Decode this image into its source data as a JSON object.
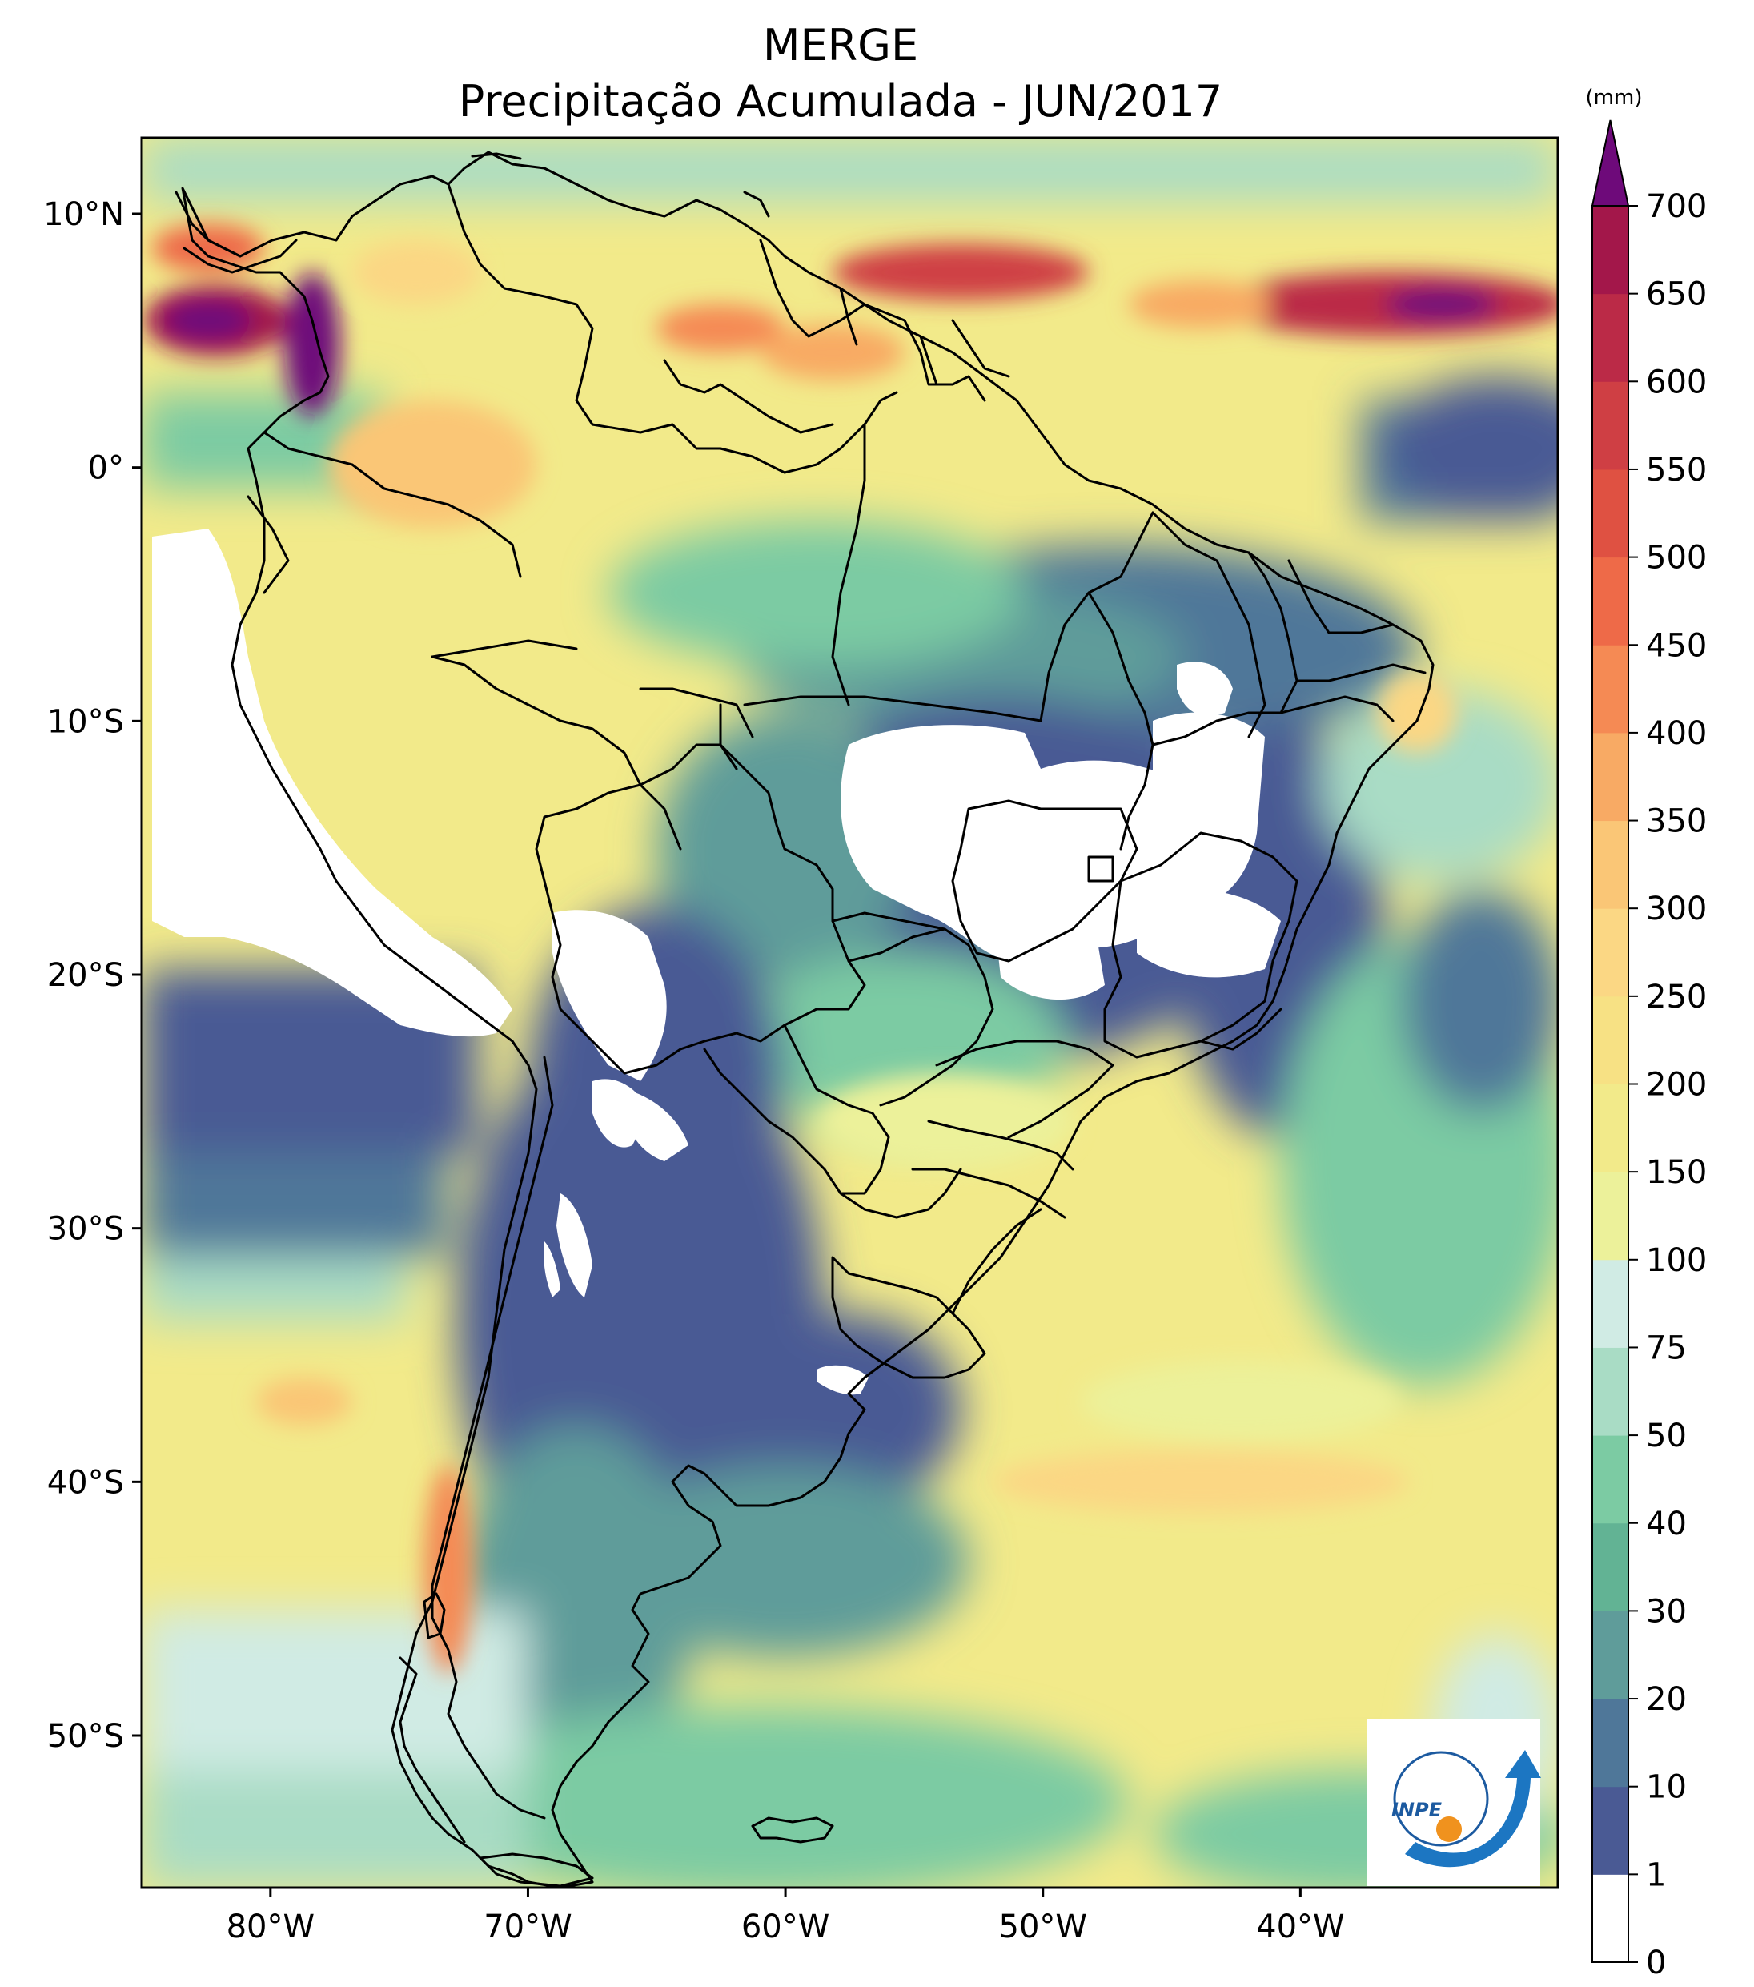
{
  "title": "MERGE",
  "subtitle": "Precipitação Acumulada - JUN/2017",
  "map": {
    "lon_range": [
      -85,
      -30
    ],
    "lat_range": [
      -56,
      13
    ],
    "lat_ticks": [
      {
        "value": 10,
        "label": "10°N"
      },
      {
        "value": 0,
        "label": "0°"
      },
      {
        "value": -10,
        "label": "10°S"
      },
      {
        "value": -20,
        "label": "20°S"
      },
      {
        "value": -30,
        "label": "30°S"
      },
      {
        "value": -40,
        "label": "40°S"
      },
      {
        "value": -50,
        "label": "50°S"
      }
    ],
    "lon_ticks": [
      {
        "value": -80,
        "label": "80°W"
      },
      {
        "value": -70,
        "label": "70°W"
      },
      {
        "value": -60,
        "label": "60°W"
      },
      {
        "value": -50,
        "label": "50°W"
      },
      {
        "value": -40,
        "label": "40°W"
      }
    ],
    "logo_text": "INPE"
  },
  "colorbar": {
    "unit": "(mm)",
    "extend": "max",
    "levels": [
      {
        "label": "0",
        "color": "#ffffff"
      },
      {
        "label": "1",
        "color": "#4a5a94"
      },
      {
        "label": "10",
        "color": "#4f7799"
      },
      {
        "label": "20",
        "color": "#5f9c9a"
      },
      {
        "label": "30",
        "color": "#62b394"
      },
      {
        "label": "40",
        "color": "#7ccba3"
      },
      {
        "label": "50",
        "color": "#a9dcc5"
      },
      {
        "label": "75",
        "color": "#d0ebe4"
      },
      {
        "label": "100",
        "color": "#ecf19a"
      },
      {
        "label": "150",
        "color": "#f2ea8a"
      },
      {
        "label": "200",
        "color": "#f7e184"
      },
      {
        "label": "250",
        "color": "#fbd784"
      },
      {
        "label": "300",
        "color": "#fac676"
      },
      {
        "label": "350",
        "color": "#f8aa64"
      },
      {
        "label": "400",
        "color": "#f58a54"
      },
      {
        "label": "450",
        "color": "#ee6a48"
      },
      {
        "label": "500",
        "color": "#df5142"
      },
      {
        "label": "550",
        "color": "#cf3f44"
      },
      {
        "label": "600",
        "color": "#bb2a47"
      },
      {
        "label": "650",
        "color": "#a3174a"
      },
      {
        "label": "700",
        "color": ""
      }
    ],
    "extend_color": "#6e0a7a"
  }
}
